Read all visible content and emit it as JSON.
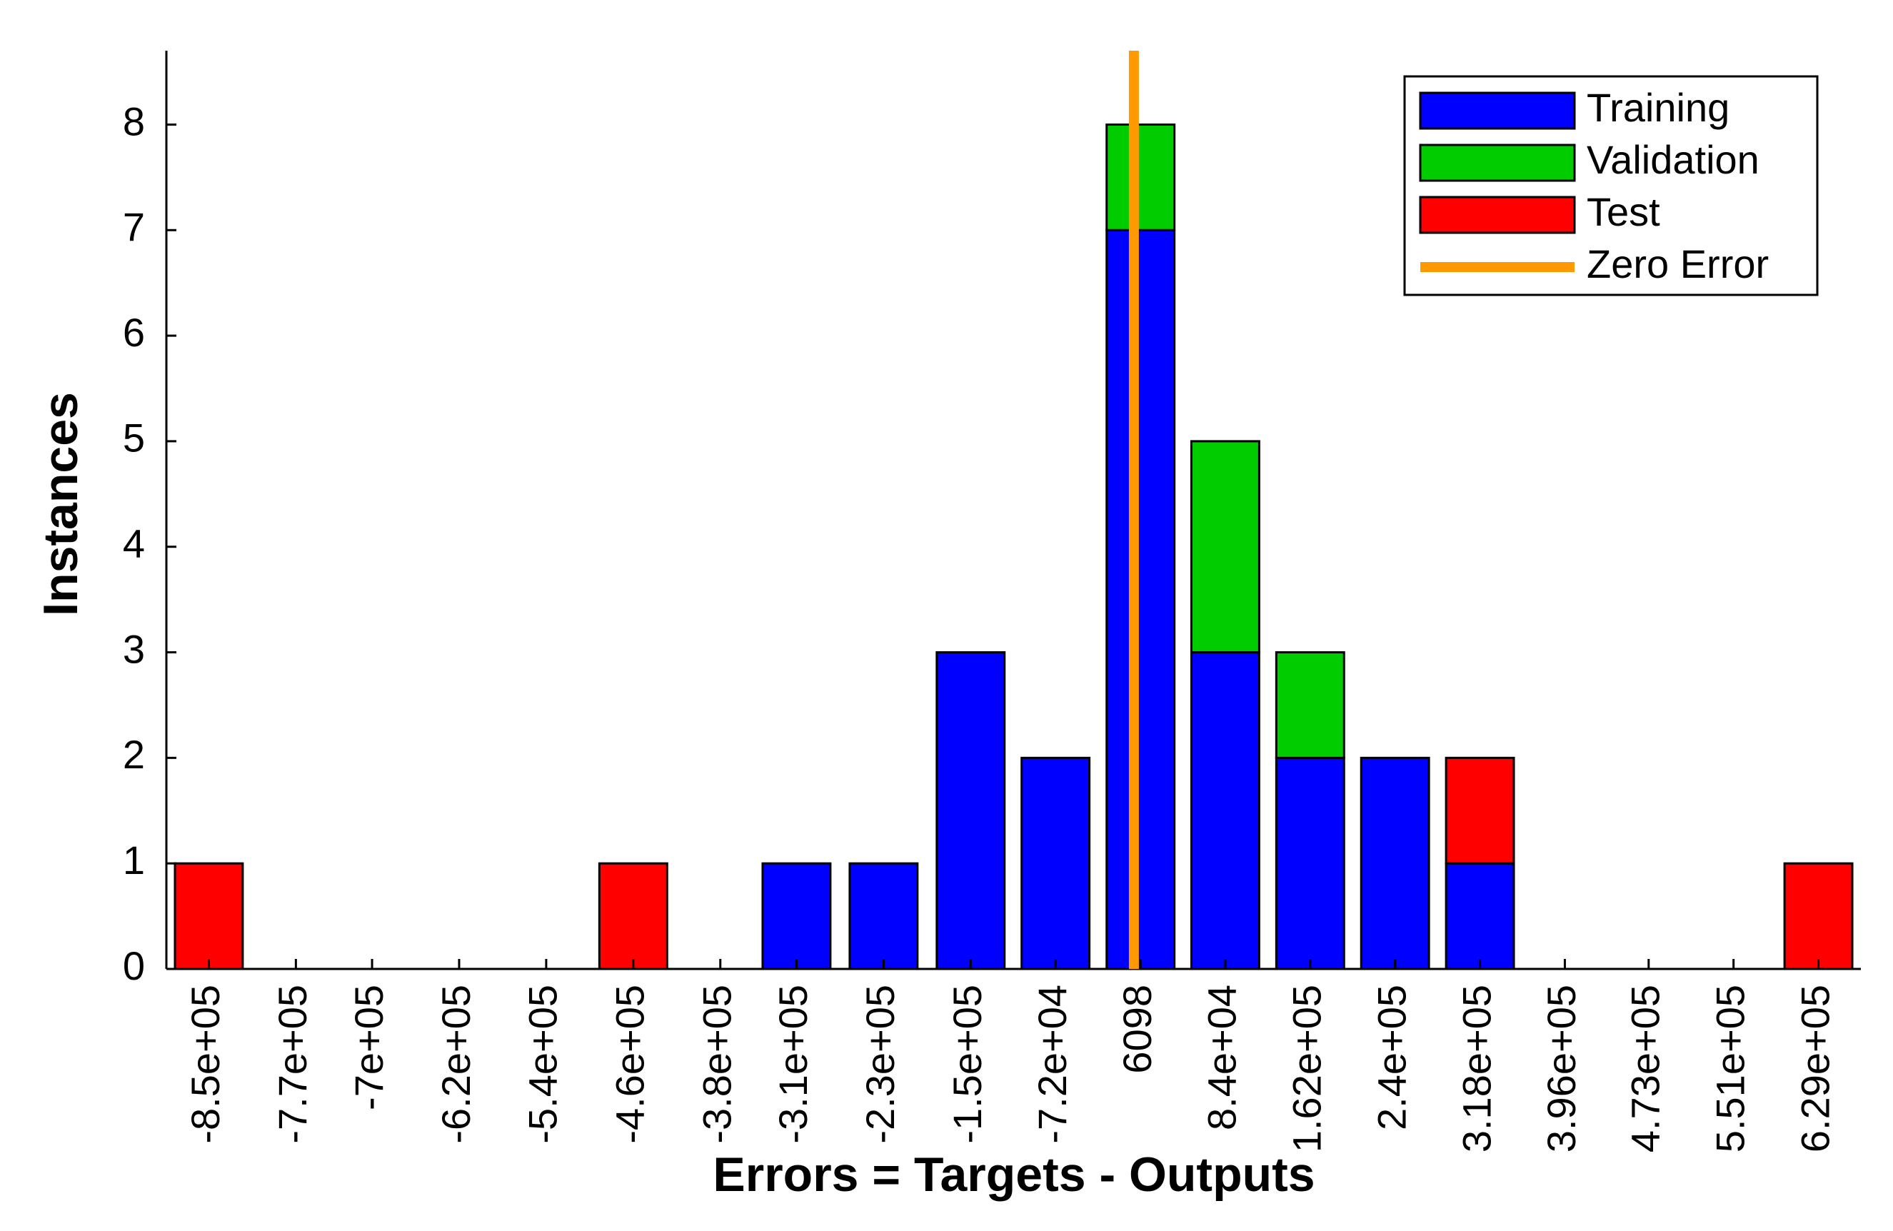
{
  "chart_data": {
    "type": "histogram",
    "xlabel": "Errors = Targets - Outputs",
    "ylabel": "Instances",
    "x": [
      {
        "value": -850000,
        "label": "-8.5e+05"
      },
      {
        "value": -770000,
        "label": "-7.7e+05"
      },
      {
        "value": -700000,
        "label": "-7e+05"
      },
      {
        "value": -620000,
        "label": "-6.2e+05"
      },
      {
        "value": -540000,
        "label": "-5.4e+05"
      },
      {
        "value": -460000,
        "label": "-4.6e+05"
      },
      {
        "value": -380000,
        "label": "-3.8e+05"
      },
      {
        "value": -310000,
        "label": "-3.1e+05"
      },
      {
        "value": -230000,
        "label": "-2.3e+05"
      },
      {
        "value": -150000,
        "label": "-1.5e+05"
      },
      {
        "value": -72000,
        "label": "-7.2e+04"
      },
      6098,
      {
        "value": 84000,
        "label": "8.4e+04"
      },
      {
        "value": 162000,
        "label": "1.62e+05"
      },
      {
        "value": 240000,
        "label": "2.4e+05"
      },
      {
        "value": 318000,
        "label": "3.18e+05"
      },
      {
        "value": 396000,
        "label": "3.96e+05"
      },
      {
        "value": 473000,
        "label": "4.73e+05"
      },
      {
        "value": 551000,
        "label": "5.51e+05"
      },
      {
        "value": 629000,
        "label": "6.29e+05"
      }
    ],
    "xlim": [
      -889000,
      668000
    ],
    "series": [
      {
        "name": "Training",
        "color": "#0000ff",
        "values": [
          0,
          0,
          0,
          0,
          0,
          0,
          0,
          1,
          1,
          3,
          2,
          7,
          3,
          2,
          2,
          1,
          0,
          0,
          0,
          0
        ]
      },
      {
        "name": "Validation",
        "color": "#00cc00",
        "values": [
          0,
          0,
          0,
          0,
          0,
          0,
          0,
          0,
          0,
          0,
          0,
          1,
          2,
          1,
          0,
          0,
          0,
          0,
          0,
          0
        ]
      },
      {
        "name": "Test",
        "color": "#ff0000",
        "values": [
          1,
          0,
          0,
          0,
          0,
          1,
          0,
          0,
          0,
          0,
          0,
          0,
          0,
          0,
          0,
          1,
          0,
          0,
          0,
          1
        ]
      }
    ],
    "zero_error": {
      "name": "Zero Error",
      "color": "#ff9900",
      "x": 0
    },
    "ylim": [
      0,
      8.7
    ],
    "yticks": [
      0,
      1,
      2,
      3,
      4,
      5,
      6,
      7,
      8
    ],
    "legend": "top-right"
  }
}
